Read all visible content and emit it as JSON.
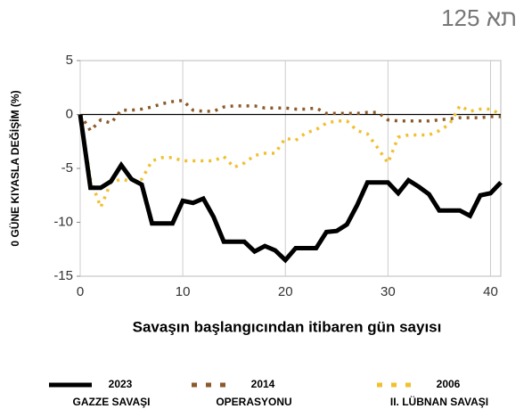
{
  "header": {
    "text": "תא 125"
  },
  "chart_data": {
    "type": "line",
    "ylabel": "0 GÜNE KIYASLA DEĞİŞİM (%)",
    "xlabel": "Savaşın başlangıcından itibaren gün sayısı",
    "x": [
      0,
      1,
      2,
      3,
      4,
      5,
      6,
      7,
      8,
      9,
      10,
      11,
      12,
      13,
      14,
      15,
      16,
      17,
      18,
      19,
      20,
      21,
      22,
      23,
      24,
      25,
      26,
      27,
      28,
      29,
      30,
      31,
      32,
      33,
      34,
      35,
      36,
      37,
      38,
      39,
      40,
      41
    ],
    "xlim": [
      0,
      41
    ],
    "xticks": [
      0,
      10,
      20,
      30,
      40
    ],
    "ylim": [
      -15,
      5
    ],
    "yticks": [
      5,
      0,
      -5,
      -10,
      -15
    ],
    "grid": true,
    "series": [
      {
        "name": "2023",
        "label": "GAZZE SAVAŞI",
        "color": "#000000",
        "dash": "solid",
        "values": [
          0,
          -6.8,
          -6.8,
          -6.2,
          -4.7,
          -6,
          -6.5,
          -10.1,
          -10.1,
          -10.1,
          -8,
          -8.2,
          -7.8,
          -9.5,
          -11.8,
          -11.8,
          -11.8,
          -12.7,
          -12.2,
          -12.6,
          -13.5,
          -12.4,
          -12.4,
          -12.4,
          -10.9,
          -10.8,
          -10.2,
          -8.4,
          -6.3,
          -6.3,
          -6.3,
          -7.3,
          -6.1,
          -6.7,
          -7.4,
          -8.9,
          -8.9,
          -8.9,
          -9.4,
          -7.5,
          -7.3,
          -6.3
        ]
      },
      {
        "name": "2014",
        "label": "OPERASYONU",
        "color": "#8b5a2b",
        "dash": "dotted",
        "values": [
          0,
          -1.5,
          -0.5,
          -0.8,
          0.4,
          0.4,
          0.5,
          0.7,
          1,
          1.2,
          1.3,
          0.4,
          0.3,
          0.3,
          0.7,
          0.8,
          0.8,
          0.8,
          0.6,
          0.6,
          0.6,
          0.5,
          0.5,
          0.6,
          0.1,
          0.1,
          0.1,
          0.1,
          0.2,
          0.2,
          -0.5,
          -0.6,
          -0.6,
          -0.6,
          -0.6,
          -0.5,
          -0.4,
          -0.3,
          -0.3,
          -0.3,
          -0.2,
          -0.2
        ]
      },
      {
        "name": "2006",
        "label": "II. LÜBNAN SAVAŞI",
        "color": "#f0c030",
        "dash": "dotted",
        "values": [
          0,
          -6,
          -8.6,
          -6.3,
          -6,
          -6.2,
          -6,
          -4.3,
          -4,
          -4,
          -4.3,
          -4.3,
          -4.3,
          -4.3,
          -3.9,
          -4.9,
          -4.5,
          -3.8,
          -3.6,
          -3.6,
          -2.2,
          -2.4,
          -1.7,
          -1.4,
          -0.8,
          -0.6,
          -0.6,
          -1.5,
          -1.8,
          -3.1,
          -4.5,
          -2.1,
          -1.9,
          -1.9,
          -1.9,
          -1.5,
          -0.9,
          0.8,
          0.3,
          0.5,
          0.5,
          0
        ]
      }
    ]
  }
}
